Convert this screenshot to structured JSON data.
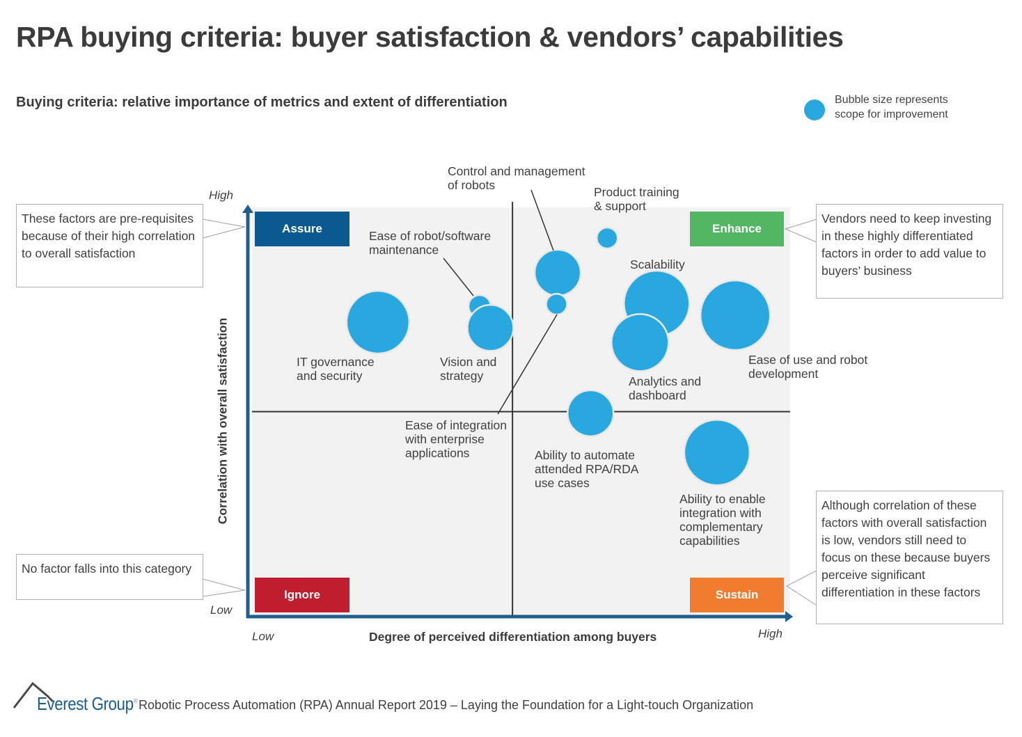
{
  "chart_data": {
    "type": "scatter",
    "subtype": "bubble quadrant",
    "title": "RPA buying criteria: buyer satisfaction & vendors’ capabilities",
    "subtitle": "Buying criteria: relative importance of metrics and extent of differentiation",
    "xlabel": "Degree of perceived differentiation among buyers",
    "ylabel": "Correlation with overall satisfaction",
    "x_ticks": {
      "low": "Low",
      "high": "High"
    },
    "y_ticks": {
      "low": "Low",
      "high": "High"
    },
    "xlim": [
      0,
      10
    ],
    "ylim": [
      0,
      10
    ],
    "dividers": {
      "x": 4.84,
      "y": 5.0
    },
    "grid": false,
    "legend": {
      "text": "Bubble size represents scope for improvement",
      "placement": "top-right"
    },
    "bubble_color": "#29A8E0",
    "points": [
      {
        "label": "IT governance and security",
        "x": 2.34,
        "y": 7.19,
        "size": 4.5
      },
      {
        "label": "Ease of robot/software maintenance",
        "x": 4.23,
        "y": 7.58,
        "size": 1.6
      },
      {
        "label": "Vision and strategy",
        "x": 4.43,
        "y": 7.05,
        "size": 3.3
      },
      {
        "label": "Control and management of robots",
        "x": 5.68,
        "y": 8.4,
        "size": 3.3
      },
      {
        "label": "Ease of integration with enterprise applications",
        "x": 5.66,
        "y": 7.63,
        "size": 1.5
      },
      {
        "label": "Product training & support",
        "x": 6.6,
        "y": 9.25,
        "size": 1.5
      },
      {
        "label": "Scalability",
        "x": 7.52,
        "y": 7.65,
        "size": 4.7
      },
      {
        "label": "Analytics and dashboard",
        "x": 7.21,
        "y": 6.69,
        "size": 4.1
      },
      {
        "label": "Ease of use and robot development",
        "x": 8.98,
        "y": 7.36,
        "size": 5.0
      },
      {
        "label": "Ability to automate attended RPA/RDA use cases",
        "x": 6.29,
        "y": 4.96,
        "size": 3.3
      },
      {
        "label": "Ability to enable integration with complementary capabilities",
        "x": 8.64,
        "y": 4.0,
        "size": 4.7
      }
    ],
    "quadrants": [
      {
        "name": "Assure",
        "position": "top-left",
        "color": "#0B5A8F"
      },
      {
        "name": "Enhance",
        "position": "top-right",
        "color": "#52B663"
      },
      {
        "name": "Ignore",
        "position": "bottom-left",
        "color": "#BE1E2D"
      },
      {
        "name": "Sustain",
        "position": "bottom-right",
        "color": "#F07C30"
      }
    ],
    "annotations": [
      {
        "quadrant": "Assure",
        "text": "These factors are pre-requisites because of their high correlation to overall satisfaction"
      },
      {
        "quadrant": "Enhance",
        "text": "Vendors need to keep investing in these highly differentiated factors in order to add value to buyers’ business"
      },
      {
        "quadrant": "Ignore",
        "text": "No factor falls into this category"
      },
      {
        "quadrant": "Sustain",
        "text": "Although correlation of these factors with overall satisfaction is low, vendors still need to focus on these because buyers perceive significant differentiation in these factors"
      }
    ]
  },
  "labels": {
    "it": [
      "IT governance",
      "and security"
    ],
    "maint": [
      "Ease of robot/software",
      "maintenance"
    ],
    "vision": [
      "Vision and",
      "strategy"
    ],
    "control": [
      "Control and management",
      "of robots"
    ],
    "integ": [
      "Ease of integration",
      "with enterprise",
      "applications"
    ],
    "training": [
      "Product training",
      "& support"
    ],
    "scal": [
      "Scalability"
    ],
    "analytics": [
      "Analytics and",
      "dashboard"
    ],
    "ease": [
      "Ease of use and robot",
      "development"
    ],
    "attended": [
      "Ability to automate",
      "attended RPA/RDA",
      "use cases"
    ],
    "enable": [
      "Ability to enable",
      "integration with",
      "complementary",
      "capabilities"
    ]
  },
  "footer": {
    "brand": "Everest Group",
    "registered": "®",
    "text": "Robotic Process Automation (RPA) Annual Report 2019 – Laying the Foundation for a Light-touch Organization"
  },
  "colors": {
    "axis": "#1F5F8F",
    "plot_bg": "#F2F2F2",
    "bubble": "#29A8E0"
  }
}
